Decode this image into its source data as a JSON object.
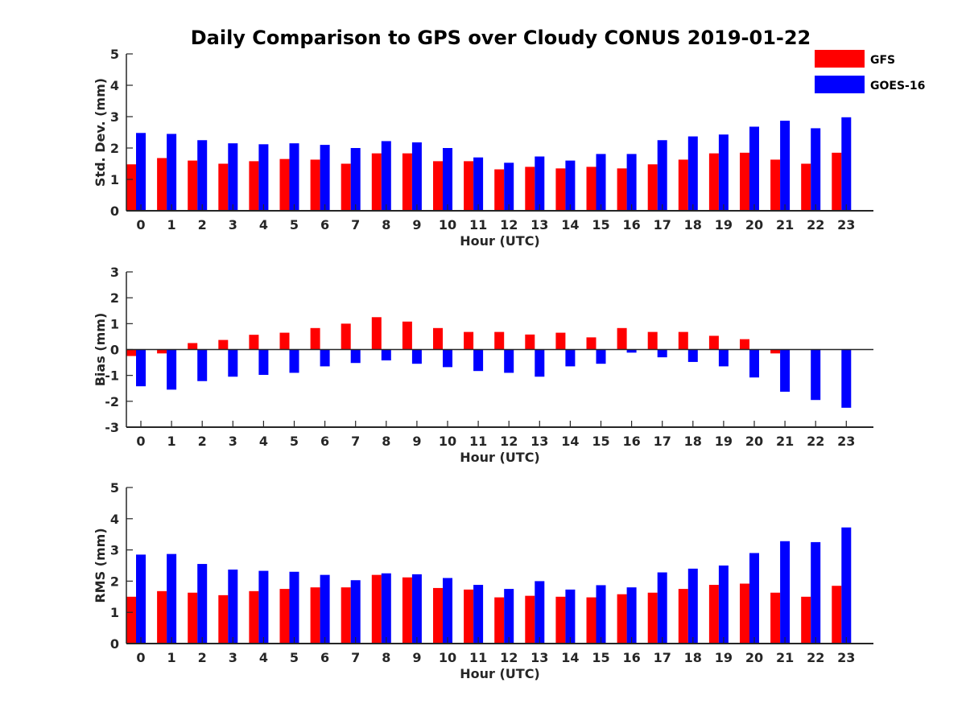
{
  "chart_data": {
    "title": "Daily Comparison to GPS over Cloudy CONUS 2019-01-22",
    "type": "bar",
    "legend": {
      "placement": "top-right",
      "entries": [
        {
          "name": "GFS",
          "color": "#ff0000"
        },
        {
          "name": "GOES-16",
          "color": "#0000ff"
        }
      ]
    },
    "categories": [
      "0",
      "1",
      "2",
      "3",
      "4",
      "5",
      "6",
      "7",
      "8",
      "9",
      "10",
      "11",
      "12",
      "13",
      "14",
      "15",
      "16",
      "17",
      "18",
      "19",
      "20",
      "21",
      "22",
      "23"
    ],
    "panels": [
      {
        "id": "stddev",
        "ylabel": "Std. Dev. (mm)",
        "xlabel": "Hour (UTC)",
        "ylim": [
          0,
          5
        ],
        "yticks": [
          0,
          1,
          2,
          3,
          4,
          5
        ],
        "series": [
          {
            "name": "GFS",
            "color": "#ff0000",
            "values": [
              1.48,
              1.68,
              1.6,
              1.5,
              1.58,
              1.65,
              1.63,
              1.5,
              1.83,
              1.83,
              1.58,
              1.58,
              1.32,
              1.4,
              1.35,
              1.4,
              1.35,
              1.48,
              1.63,
              1.83,
              1.85,
              1.63,
              1.5,
              1.85
            ]
          },
          {
            "name": "GOES-16",
            "color": "#0000ff",
            "values": [
              2.48,
              2.45,
              2.25,
              2.15,
              2.12,
              2.15,
              2.1,
              2.0,
              2.22,
              2.18,
              2.0,
              1.7,
              1.53,
              1.73,
              1.6,
              1.81,
              1.81,
              2.25,
              2.37,
              2.43,
              2.68,
              2.87,
              2.63,
              2.98
            ]
          }
        ]
      },
      {
        "id": "bias",
        "ylabel": "Bias (mm)",
        "xlabel": "Hour (UTC)",
        "ylim": [
          -3,
          3
        ],
        "yticks": [
          -3,
          -2,
          -1,
          0,
          1,
          2,
          3
        ],
        "series": [
          {
            "name": "GFS",
            "color": "#ff0000",
            "values": [
              -0.25,
              -0.15,
              0.25,
              0.37,
              0.57,
              0.65,
              0.83,
              1.0,
              1.25,
              1.08,
              0.83,
              0.68,
              0.68,
              0.58,
              0.65,
              0.47,
              0.83,
              0.68,
              0.68,
              0.53,
              0.4,
              -0.15,
              0.0,
              0.0
            ]
          },
          {
            "name": "GOES-16",
            "color": "#0000ff",
            "values": [
              -1.42,
              -1.55,
              -1.22,
              -1.05,
              -0.98,
              -0.9,
              -0.65,
              -0.52,
              -0.42,
              -0.55,
              -0.68,
              -0.83,
              -0.9,
              -1.05,
              -0.65,
              -0.55,
              -0.12,
              -0.3,
              -0.48,
              -0.65,
              -1.08,
              -1.63,
              -1.95,
              -2.25
            ]
          }
        ]
      },
      {
        "id": "rms",
        "ylabel": "RMS (mm)",
        "xlabel": "Hour (UTC)",
        "ylim": [
          0,
          5
        ],
        "yticks": [
          0,
          1,
          2,
          3,
          4,
          5
        ],
        "series": [
          {
            "name": "GFS",
            "color": "#ff0000",
            "values": [
              1.5,
              1.68,
              1.63,
              1.55,
              1.68,
              1.75,
              1.8,
              1.8,
              2.2,
              2.12,
              1.78,
              1.73,
              1.48,
              1.53,
              1.5,
              1.48,
              1.58,
              1.63,
              1.75,
              1.88,
              1.92,
              1.63,
              1.5,
              1.85
            ]
          },
          {
            "name": "GOES-16",
            "color": "#0000ff",
            "values": [
              2.85,
              2.87,
              2.55,
              2.37,
              2.33,
              2.3,
              2.2,
              2.03,
              2.25,
              2.22,
              2.1,
              1.88,
              1.75,
              2.0,
              1.73,
              1.87,
              1.8,
              2.28,
              2.4,
              2.5,
              2.9,
              3.28,
              3.25,
              3.72
            ]
          }
        ]
      }
    ]
  }
}
